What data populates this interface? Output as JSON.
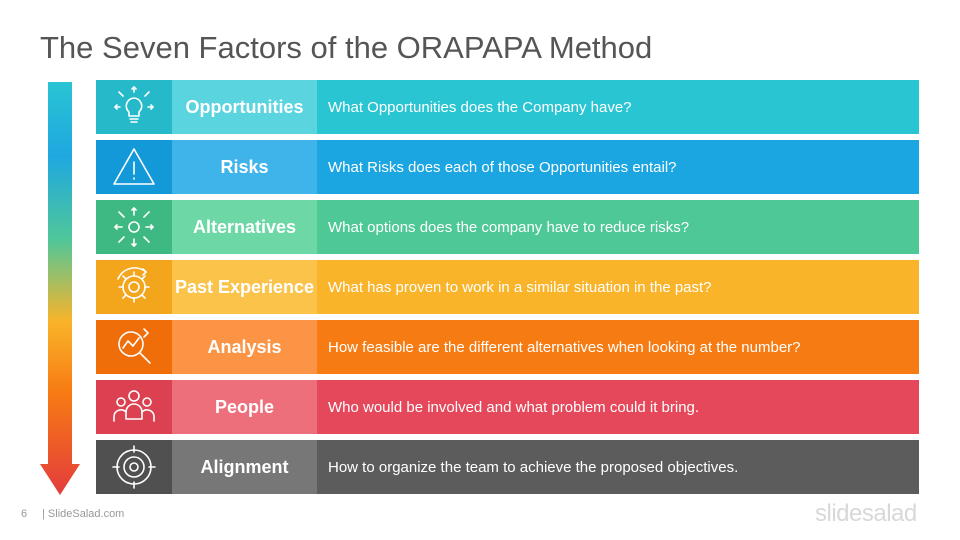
{
  "slide": {
    "title": "The Seven Factors of the ORAPAPA Method",
    "page_number": "6",
    "footer_site": "| SlideSalad.com",
    "logo_text": "slidesalad"
  },
  "arrow": {
    "colors": [
      "#29c4d3",
      "#1fa8e0",
      "#4fc79a",
      "#f9b42a",
      "#f77b13",
      "#e94b5b",
      "#e33c3c"
    ]
  },
  "rows": [
    {
      "label": "Opportunities",
      "question": "What Opportunities does the Company have?",
      "icon": "lightbulb-icon",
      "colors": {
        "icon": "#25b9c9",
        "label": "#5ad4df",
        "main": "#2ac5d3"
      }
    },
    {
      "label": "Risks",
      "question": "What Risks does each of those Opportunities entail?",
      "icon": "warning-icon",
      "colors": {
        "icon": "#1499d8",
        "label": "#3fb4ea",
        "main": "#1ba6e2"
      }
    },
    {
      "label": "Alternatives",
      "question": "What options does the company have to reduce risks?",
      "icon": "directions-icon",
      "colors": {
        "icon": "#3fb984",
        "label": "#6dd8a6",
        "main": "#4ec996"
      }
    },
    {
      "label": "Past Experience",
      "question": "What has proven to work in a similar situation in the past?",
      "icon": "gear-icon",
      "colors": {
        "icon": "#f3a51c",
        "label": "#fbc34a",
        "main": "#f9b42a"
      }
    },
    {
      "label": "Analysis",
      "question": "How feasible are the different alternatives when looking at the number?",
      "icon": "magnifier-chart-icon",
      "colors": {
        "icon": "#f06e0a",
        "label": "#fb9545",
        "main": "#f77b13"
      }
    },
    {
      "label": "People",
      "question": "Who would be involved and what problem could it bring.",
      "icon": "people-icon",
      "colors": {
        "icon": "#dc4151",
        "label": "#ee6f7c",
        "main": "#e5485a"
      }
    },
    {
      "label": "Alignment",
      "question": "How to organize the team to achieve the proposed objectives.",
      "icon": "target-icon",
      "colors": {
        "icon": "#505050",
        "label": "#777777",
        "main": "#5c5c5c"
      }
    }
  ]
}
